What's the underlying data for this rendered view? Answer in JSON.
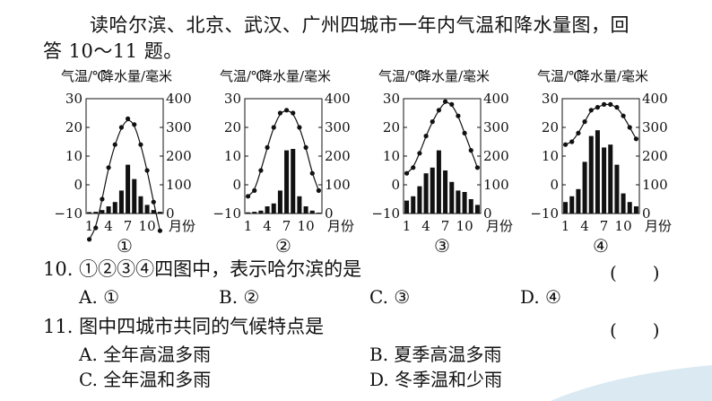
{
  "intro": {
    "line1": "读哈尔滨、北京、武汉、广州四城市一年内气温和降水量图，回",
    "line2": "答 10～11 题。"
  },
  "axis": {
    "temp_label": "气温/℃",
    "precip_label": "降水量/毫米",
    "temp_ticks": [
      "30",
      "20",
      "10",
      "0",
      "−10"
    ],
    "precip_ticks": [
      "400",
      "300",
      "200",
      "100",
      "0"
    ],
    "month_ticks": [
      "1",
      "4",
      "7",
      "10"
    ],
    "month_label": "月份"
  },
  "chart_data": [
    {
      "type": "bar+line",
      "id": "①",
      "temp_range": [
        -10,
        30
      ],
      "precip_range": [
        0,
        400
      ],
      "months": [
        1,
        2,
        3,
        4,
        5,
        6,
        7,
        8,
        9,
        10,
        11,
        12
      ],
      "temperature": [
        -19,
        -15,
        -5,
        6,
        14,
        20,
        23,
        21,
        14,
        5,
        -6,
        -16
      ],
      "precipitation": [
        5,
        6,
        12,
        25,
        40,
        80,
        170,
        120,
        60,
        30,
        12,
        6
      ]
    },
    {
      "type": "bar+line",
      "id": "②",
      "temp_range": [
        -10,
        30
      ],
      "precip_range": [
        0,
        400
      ],
      "months": [
        1,
        2,
        3,
        4,
        5,
        6,
        7,
        8,
        9,
        10,
        11,
        12
      ],
      "temperature": [
        -4,
        -2,
        5,
        13,
        20,
        25,
        26,
        25,
        20,
        13,
        4,
        -2
      ],
      "precipitation": [
        4,
        6,
        10,
        25,
        35,
        80,
        220,
        225,
        60,
        25,
        10,
        3
      ]
    },
    {
      "type": "bar+line",
      "id": "③",
      "temp_range": [
        -10,
        30
      ],
      "precip_range": [
        0,
        400
      ],
      "months": [
        1,
        2,
        3,
        4,
        5,
        6,
        7,
        8,
        9,
        10,
        11,
        12
      ],
      "temperature": [
        4,
        6,
        11,
        17,
        22,
        26,
        29,
        28,
        24,
        18,
        12,
        6
      ],
      "precipitation": [
        45,
        60,
        95,
        140,
        160,
        220,
        150,
        110,
        80,
        75,
        50,
        30
      ]
    },
    {
      "type": "bar+line",
      "id": "④",
      "temp_range": [
        -10,
        30
      ],
      "precip_range": [
        0,
        400
      ],
      "months": [
        1,
        2,
        3,
        4,
        5,
        6,
        7,
        8,
        9,
        10,
        11,
        12
      ],
      "temperature": [
        14,
        15,
        18,
        22,
        26,
        27,
        28,
        28,
        27,
        24,
        20,
        16
      ],
      "precipitation": [
        40,
        60,
        85,
        180,
        270,
        290,
        230,
        240,
        170,
        70,
        40,
        25
      ]
    }
  ],
  "questions": [
    {
      "stem": "10. ①②③④四图中，表示哈尔滨的是",
      "paren": "(　　)",
      "options": [
        "A. ①",
        "B. ②",
        "C. ③",
        "D. ④"
      ]
    },
    {
      "stem": "11. 图中四城市共同的气候特点是",
      "paren": "(　　)",
      "options": [
        "A. 全年高温多雨",
        "B. 夏季高温多雨",
        "C. 全年温和多雨",
        "D. 冬季温和少雨"
      ]
    }
  ],
  "colors": {
    "ink": "#111111",
    "wave": "#dbe9f3"
  }
}
